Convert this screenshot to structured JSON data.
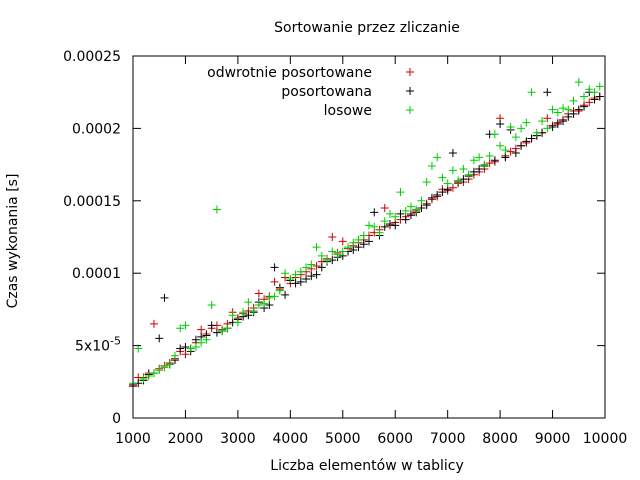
{
  "chart_data": {
    "type": "scatter",
    "title": "Sortowanie przez zliczanie",
    "xlabel": "Liczba elementów w tablicy",
    "ylabel": "Czas wykonania [s]",
    "xlim": [
      1000,
      10000
    ],
    "ylim": [
      0,
      0.00025
    ],
    "xticks": [
      {
        "value": 1000,
        "label": "1000"
      },
      {
        "value": 2000,
        "label": "2000"
      },
      {
        "value": 3000,
        "label": "3000"
      },
      {
        "value": 4000,
        "label": "4000"
      },
      {
        "value": 5000,
        "label": "5000"
      },
      {
        "value": 6000,
        "label": "6000"
      },
      {
        "value": 7000,
        "label": "7000"
      },
      {
        "value": 8000,
        "label": "8000"
      },
      {
        "value": 9000,
        "label": "9000"
      },
      {
        "value": 10000,
        "label": "10000"
      }
    ],
    "yticks": [
      {
        "value": 0,
        "label": "0",
        "sup": ""
      },
      {
        "value": 5e-05,
        "label": "5x10",
        "sup": "-5"
      },
      {
        "value": 0.0001,
        "label": "0.0001",
        "sup": ""
      },
      {
        "value": 0.00015,
        "label": "0.00015",
        "sup": ""
      },
      {
        "value": 0.0002,
        "label": "0.0002",
        "sup": ""
      },
      {
        "value": 0.00025,
        "label": "0.00025",
        "sup": ""
      }
    ],
    "grid": false,
    "legend_position": "top-left",
    "series": [
      {
        "name": "odwrotnie posortowane",
        "color": "#cc0000",
        "points": [
          [
            1000,
            2.3e-05
          ],
          [
            1100,
            2.8e-05
          ],
          [
            1200,
            2.8e-05
          ],
          [
            1300,
            3.1e-05
          ],
          [
            1400,
            6.5e-05
          ],
          [
            1500,
            3.4e-05
          ],
          [
            1600,
            3.6e-05
          ],
          [
            1700,
            3.8e-05
          ],
          [
            1800,
            4.1e-05
          ],
          [
            1900,
            4.6e-05
          ],
          [
            2000,
            4.4e-05
          ],
          [
            2100,
            4.8e-05
          ],
          [
            2200,
            5.2e-05
          ],
          [
            2300,
            6.1e-05
          ],
          [
            2400,
            5.8e-05
          ],
          [
            2500,
            6.2e-05
          ],
          [
            2600,
            6.4e-05
          ],
          [
            2700,
            6.1e-05
          ],
          [
            2800,
            6.5e-05
          ],
          [
            2900,
            7.3e-05
          ],
          [
            3000,
            6.9e-05
          ],
          [
            3100,
            7.2e-05
          ],
          [
            3200,
            7.4e-05
          ],
          [
            3300,
            7.6e-05
          ],
          [
            3400,
            8.6e-05
          ],
          [
            3500,
            8.2e-05
          ],
          [
            3600,
            8.4e-05
          ],
          [
            3700,
            9.4e-05
          ],
          [
            3800,
            8.9e-05
          ],
          [
            3900,
            9.7e-05
          ],
          [
            4000,
            9.3e-05
          ],
          [
            4100,
            9.7e-05
          ],
          [
            4200,
            9.9e-05
          ],
          [
            4300,
            0.000101
          ],
          [
            4400,
            0.000103
          ],
          [
            4500,
            0.000105
          ],
          [
            4600,
            0.000108
          ],
          [
            4700,
            0.00011
          ],
          [
            4800,
            0.000125
          ],
          [
            4900,
            0.000114
          ],
          [
            5000,
            0.000122
          ],
          [
            5100,
            0.000117
          ],
          [
            5200,
            0.000119
          ],
          [
            5300,
            0.000121
          ],
          [
            5400,
            0.000123
          ],
          [
            5500,
            0.000126
          ],
          [
            5600,
            0.000128
          ],
          [
            5700,
            0.00013
          ],
          [
            5800,
            0.000145
          ],
          [
            5900,
            0.000133
          ],
          [
            6000,
            0.000135
          ],
          [
            6100,
            0.000137
          ],
          [
            6200,
            0.000139
          ],
          [
            6300,
            0.000141
          ],
          [
            6400,
            0.000143
          ],
          [
            6500,
            0.000145
          ],
          [
            6600,
            0.000148
          ],
          [
            6700,
            0.000151
          ],
          [
            6800,
            0.000153
          ],
          [
            6900,
            0.000158
          ],
          [
            7000,
            0.000157
          ],
          [
            7100,
            0.000159
          ],
          [
            7200,
            0.000162
          ],
          [
            7300,
            0.000163
          ],
          [
            7400,
            0.000165
          ],
          [
            7500,
            0.000168
          ],
          [
            7600,
            0.00017
          ],
          [
            7700,
            0.000172
          ],
          [
            7800,
            0.000176
          ],
          [
            7900,
            0.000177
          ],
          [
            8000,
            0.000207
          ],
          [
            8100,
            0.000181
          ],
          [
            8200,
            0.000184
          ],
          [
            8300,
            0.000186
          ],
          [
            8400,
            0.000188
          ],
          [
            8500,
            0.00019
          ],
          [
            8600,
            0.000193
          ],
          [
            8700,
            0.000195
          ],
          [
            8800,
            0.000197
          ],
          [
            8900,
            0.000207
          ],
          [
            9000,
            0.000202
          ],
          [
            9100,
            0.000204
          ],
          [
            9200,
            0.000206
          ],
          [
            9300,
            0.00021
          ],
          [
            9400,
            0.000212
          ],
          [
            9500,
            0.000212
          ],
          [
            9600,
            0.000216
          ],
          [
            9700,
            0.000218
          ],
          [
            9800,
            0.000221
          ],
          [
            9900,
            0.000222
          ]
        ]
      },
      {
        "name": "posortowana",
        "color": "#000000",
        "points": [
          [
            1000,
            2.2e-05
          ],
          [
            1100,
            2.4e-05
          ],
          [
            1200,
            2.6e-05
          ],
          [
            1300,
            3e-05
          ],
          [
            1400,
            3.1e-05
          ],
          [
            1500,
            5.5e-05
          ],
          [
            1600,
            8.3e-05
          ],
          [
            1700,
            3.7e-05
          ],
          [
            1800,
            4e-05
          ],
          [
            1900,
            4.8e-05
          ],
          [
            2000,
            4.9e-05
          ],
          [
            2100,
            4.6e-05
          ],
          [
            2200,
            5.4e-05
          ],
          [
            2300,
            5.6e-05
          ],
          [
            2400,
            5.7e-05
          ],
          [
            2500,
            6.4e-05
          ],
          [
            2600,
            5.9e-05
          ],
          [
            2700,
            6e-05
          ],
          [
            2800,
            6.2e-05
          ],
          [
            2900,
            6.6e-05
          ],
          [
            3000,
            6.8e-05
          ],
          [
            3100,
            7e-05
          ],
          [
            3200,
            7.1e-05
          ],
          [
            3300,
            7.3e-05
          ],
          [
            3400,
            8e-05
          ],
          [
            3500,
            7.6e-05
          ],
          [
            3600,
            7.8e-05
          ],
          [
            3700,
            0.000104
          ],
          [
            3800,
            9e-05
          ],
          [
            3900,
            8.5e-05
          ],
          [
            4000,
            9.5e-05
          ],
          [
            4100,
            9.3e-05
          ],
          [
            4200,
            9.4e-05
          ],
          [
            4300,
            9.6e-05
          ],
          [
            4400,
            9.8e-05
          ],
          [
            4500,
            9.9e-05
          ],
          [
            4600,
            0.000104
          ],
          [
            4700,
            0.000108
          ],
          [
            4800,
            0.000109
          ],
          [
            4900,
            0.000111
          ],
          [
            5000,
            0.000112
          ],
          [
            5100,
            0.000115
          ],
          [
            5200,
            0.000116
          ],
          [
            5300,
            0.000118
          ],
          [
            5400,
            0.00012
          ],
          [
            5500,
            0.000122
          ],
          [
            5600,
            0.000142
          ],
          [
            5700,
            0.000126
          ],
          [
            5800,
            0.000132
          ],
          [
            5900,
            0.000134
          ],
          [
            6000,
            0.000133
          ],
          [
            6100,
            0.000141
          ],
          [
            6200,
            0.000137
          ],
          [
            6300,
            0.00014
          ],
          [
            6400,
            0.000142
          ],
          [
            6500,
            0.000145
          ],
          [
            6600,
            0.000147
          ],
          [
            6700,
            0.000152
          ],
          [
            6800,
            0.000154
          ],
          [
            6900,
            0.000156
          ],
          [
            7000,
            0.000158
          ],
          [
            7100,
            0.000183
          ],
          [
            7200,
            0.000163
          ],
          [
            7300,
            0.000165
          ],
          [
            7400,
            0.000167
          ],
          [
            7500,
            0.00017
          ],
          [
            7600,
            0.000172
          ],
          [
            7700,
            0.000174
          ],
          [
            7800,
            0.000196
          ],
          [
            7900,
            0.000178
          ],
          [
            8000,
            0.000203
          ],
          [
            8100,
            0.00018
          ],
          [
            8200,
            0.000199
          ],
          [
            8300,
            0.000183
          ],
          [
            8400,
            0.000188
          ],
          [
            8500,
            0.000191
          ],
          [
            8600,
            0.000193
          ],
          [
            8700,
            0.000195
          ],
          [
            8800,
            0.000197
          ],
          [
            8900,
            0.000225
          ],
          [
            9000,
            0.000201
          ],
          [
            9100,
            0.000203
          ],
          [
            9200,
            0.000205
          ],
          [
            9300,
            0.000208
          ],
          [
            9400,
            0.00021
          ],
          [
            9500,
            0.000213
          ],
          [
            9600,
            0.000215
          ],
          [
            9700,
            0.000225
          ],
          [
            9800,
            0.00022
          ],
          [
            9900,
            0.000222
          ]
        ]
      },
      {
        "name": "losowe",
        "color": "#00cc00",
        "points": [
          [
            1000,
            2.4e-05
          ],
          [
            1100,
            4.8e-05
          ],
          [
            1200,
            2.7e-05
          ],
          [
            1300,
            2.9e-05
          ],
          [
            1400,
            3.1e-05
          ],
          [
            1500,
            3.3e-05
          ],
          [
            1600,
            3.5e-05
          ],
          [
            1700,
            3.7e-05
          ],
          [
            1800,
            4.3e-05
          ],
          [
            1900,
            6.2e-05
          ],
          [
            2000,
            6.4e-05
          ],
          [
            2100,
            4.8e-05
          ],
          [
            2200,
            4.9e-05
          ],
          [
            2300,
            5.2e-05
          ],
          [
            2400,
            5.4e-05
          ],
          [
            2500,
            7.8e-05
          ],
          [
            2600,
            0.000144
          ],
          [
            2700,
            6e-05
          ],
          [
            2800,
            6.2e-05
          ],
          [
            2900,
            7.1e-05
          ],
          [
            3000,
            6.6e-05
          ],
          [
            3100,
            7.3e-05
          ],
          [
            3200,
            8e-05
          ],
          [
            3300,
            7.4e-05
          ],
          [
            3400,
            7.8e-05
          ],
          [
            3500,
            7.9e-05
          ],
          [
            3600,
            8.3e-05
          ],
          [
            3700,
            8.4e-05
          ],
          [
            3800,
            8.8e-05
          ],
          [
            3900,
            0.0001
          ],
          [
            4000,
            9.6e-05
          ],
          [
            4100,
            9.9e-05
          ],
          [
            4200,
            0.000101
          ],
          [
            4300,
            0.000104
          ],
          [
            4400,
            0.000106
          ],
          [
            4500,
            0.000118
          ],
          [
            4600,
            0.000112
          ],
          [
            4700,
            0.000109
          ],
          [
            4800,
            0.000115
          ],
          [
            4900,
            0.000113
          ],
          [
            5000,
            0.000115
          ],
          [
            5100,
            0.000118
          ],
          [
            5200,
            0.000121
          ],
          [
            5300,
            0.000123
          ],
          [
            5400,
            0.000126
          ],
          [
            5500,
            0.000133
          ],
          [
            5600,
            0.000132
          ],
          [
            5700,
            0.000128
          ],
          [
            5800,
            0.000136
          ],
          [
            5900,
            0.000141
          ],
          [
            6000,
            0.000139
          ],
          [
            6100,
            0.000156
          ],
          [
            6200,
            0.000143
          ],
          [
            6300,
            0.000146
          ],
          [
            6400,
            0.000144
          ],
          [
            6500,
            0.00015
          ],
          [
            6600,
            0.000163
          ],
          [
            6700,
            0.000174
          ],
          [
            6800,
            0.00018
          ],
          [
            6900,
            0.000166
          ],
          [
            7000,
            0.000162
          ],
          [
            7100,
            0.000171
          ],
          [
            7200,
            0.000164
          ],
          [
            7300,
            0.000172
          ],
          [
            7400,
            0.000168
          ],
          [
            7500,
            0.000178
          ],
          [
            7600,
            0.00018
          ],
          [
            7700,
            0.000175
          ],
          [
            7800,
            0.000181
          ],
          [
            7900,
            0.000196
          ],
          [
            8000,
            0.000188
          ],
          [
            8100,
            0.000185
          ],
          [
            8200,
            0.000201
          ],
          [
            8300,
            0.000194
          ],
          [
            8400,
            0.0002
          ],
          [
            8500,
            0.000204
          ],
          [
            8600,
            0.000225
          ],
          [
            8700,
            0.000197
          ],
          [
            8800,
            0.000205
          ],
          [
            8900,
            0.0002
          ],
          [
            9000,
            0.000213
          ],
          [
            9100,
            0.000211
          ],
          [
            9200,
            0.000214
          ],
          [
            9300,
            0.000213
          ],
          [
            9400,
            0.000219
          ],
          [
            9500,
            0.000232
          ],
          [
            9600,
            0.000222
          ],
          [
            9700,
            0.000227
          ],
          [
            9800,
            0.000225
          ],
          [
            9900,
            0.000229
          ]
        ]
      }
    ]
  }
}
